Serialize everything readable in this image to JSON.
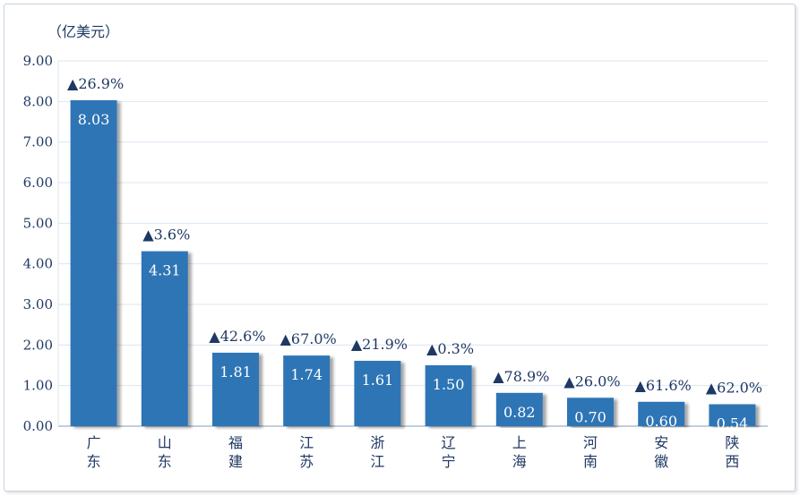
{
  "chart_data": {
    "type": "bar",
    "unit_label": "（亿美元）",
    "categories": [
      "广东",
      "山东",
      "福建",
      "江苏",
      "浙江",
      "辽宁",
      "上海",
      "河南",
      "安徽",
      "陕西"
    ],
    "series": [
      {
        "values": [
          8.03,
          4.31,
          1.81,
          1.74,
          1.61,
          1.5,
          0.82,
          0.7,
          0.6,
          0.54
        ],
        "value_labels": [
          "8.03",
          "4.31",
          "1.81",
          "1.74",
          "1.61",
          "1.50",
          "0.82",
          "0.70",
          "0.60",
          "0.54"
        ],
        "growth_labels": [
          "▲26.9%",
          "▲3.6%",
          "▲42.6%",
          "▲67.0%",
          "▲21.9%",
          "▲0.3%",
          "▲78.9%",
          "▲26.0%",
          "▲61.6%",
          "▲62.0%"
        ]
      }
    ],
    "yticks": [
      "0.00",
      "1.00",
      "2.00",
      "3.00",
      "4.00",
      "5.00",
      "6.00",
      "7.00",
      "8.00",
      "9.00"
    ],
    "ylim": [
      0,
      9
    ],
    "grid": true,
    "legend": "none",
    "colors": {
      "bar": "#2e75b6",
      "text": "#1f3864",
      "value_text": "#ffffff",
      "grid": "#dbe6f2",
      "axis": "#9ab1c9"
    }
  }
}
